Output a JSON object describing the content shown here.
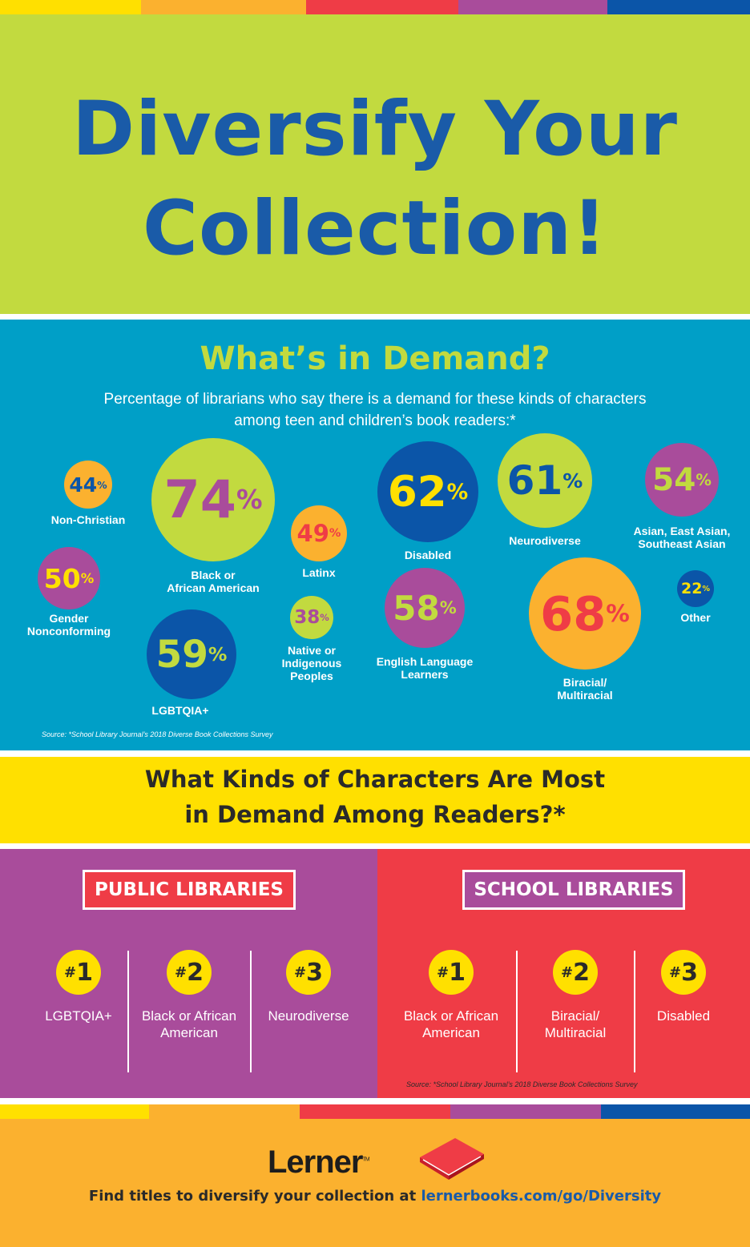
{
  "colors": {
    "lime": "#c2da3f",
    "blue": "#1a5ba8",
    "teal": "#009fc7",
    "purple": "#a94c9b",
    "red": "#ef3c46",
    "yellow": "#ffe000",
    "orange": "#fbb12f",
    "navy": "#0b55a8"
  },
  "header": {
    "title_line1": "Diversify Your",
    "title_line2": "Collection!"
  },
  "demand": {
    "title": "What’s in Demand?",
    "subtitle_line1": "Percentage of librarians who say there is a demand for these kinds of characters",
    "subtitle_line2": "among teen and children’s book readers:*",
    "source": "Source: *School Library Journal’s 2018 Diverse Book Collections Survey",
    "items": [
      {
        "value": 44,
        "label1": "Non-Christian",
        "label2": ""
      },
      {
        "value": 74,
        "label1": "Black or",
        "label2": "African American"
      },
      {
        "value": 49,
        "label1": "Latinx",
        "label2": ""
      },
      {
        "value": 62,
        "label1": "Disabled",
        "label2": ""
      },
      {
        "value": 61,
        "label1": "Neurodiverse",
        "label2": ""
      },
      {
        "value": 54,
        "label1": "Asian, East Asian,",
        "label2": "Southeast Asian"
      },
      {
        "value": 50,
        "label1": "Gender",
        "label2": "Nonconforming"
      },
      {
        "value": 38,
        "label1": "Native or",
        "label2": "Indigenous",
        "label3": "Peoples"
      },
      {
        "value": 58,
        "label1": "English Language",
        "label2": "Learners"
      },
      {
        "value": 68,
        "label1": "Biracial/",
        "label2": "Multiracial"
      },
      {
        "value": 22,
        "label1": "Other",
        "label2": ""
      },
      {
        "value": 59,
        "label1": "LGBTQIA+",
        "label2": ""
      }
    ]
  },
  "kinds": {
    "title_line1": "What Kinds of Characters Are Most",
    "title_line2": "in Demand Among Readers?*"
  },
  "public": {
    "label": "PUBLIC LIBRARIES",
    "ranks": [
      {
        "rank": "1",
        "line1": "LGBTQIA+",
        "line2": ""
      },
      {
        "rank": "2",
        "line1": "Black or African",
        "line2": "American"
      },
      {
        "rank": "3",
        "line1": "Neurodiverse",
        "line2": ""
      }
    ]
  },
  "school": {
    "label": "SCHOOL LIBRARIES",
    "ranks": [
      {
        "rank": "1",
        "line1": "Black or African",
        "line2": "American"
      },
      {
        "rank": "2",
        "line1": "Biracial/",
        "line2": "Multiracial"
      },
      {
        "rank": "3",
        "line1": "Disabled",
        "line2": ""
      }
    ],
    "source": "Source: *School Library Journal’s 2018 Diverse Book Collections Survey"
  },
  "footer": {
    "logo": "Lerner",
    "tm": "TM",
    "cta_text": "Find titles to diversify your collection at ",
    "cta_link": "lernerbooks.com/go/Diversity"
  },
  "percent_sign": "%",
  "hash": "#"
}
